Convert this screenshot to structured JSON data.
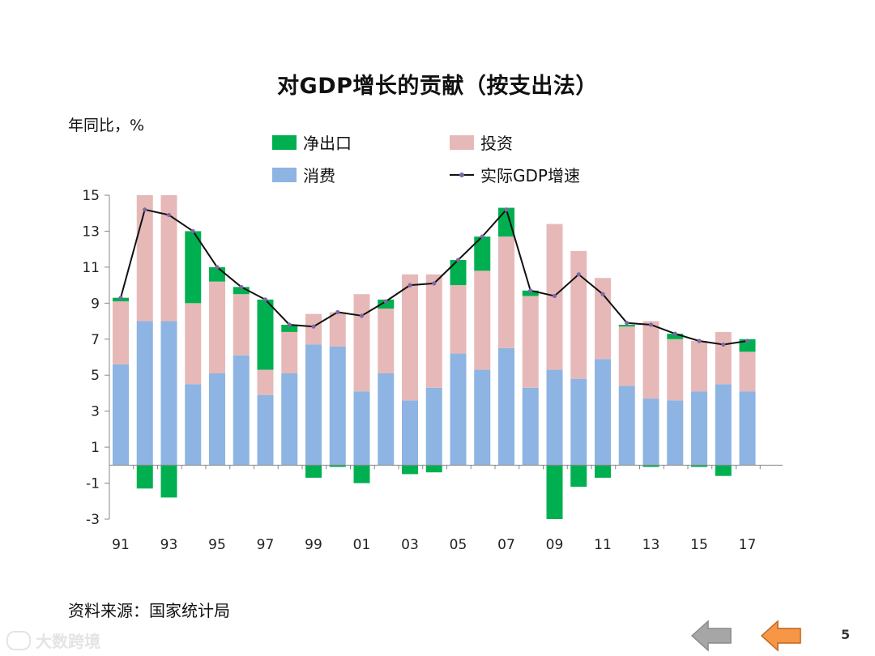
{
  "title": "对GDP增长的贡献（按支出法）",
  "unit_label": "年同比，%",
  "legend": {
    "net_exports": "净出口",
    "investment": "投资",
    "consumption": "消费",
    "gdp_growth": "实际GDP增速"
  },
  "source_note": "资料来源：国家统计局",
  "watermark_text": "大数跨境",
  "page_number": "5",
  "colors": {
    "consumption": "#8db4e2",
    "investment": "#e6b9b8",
    "net_exports": "#00b050",
    "gdp_line": "#111111",
    "gdp_marker": "#7b68a6",
    "nav_back": "#a6a6a6",
    "nav_forward": "#f79646"
  },
  "chart_data": {
    "type": "bar",
    "stacked": true,
    "years": [
      "1991",
      "1992",
      "1993",
      "1994",
      "1995",
      "1996",
      "1997",
      "1998",
      "1999",
      "2000",
      "2001",
      "2002",
      "2003",
      "2004",
      "2005",
      "2006",
      "2007",
      "2008",
      "2009",
      "2010",
      "2011",
      "2012",
      "2013",
      "2014",
      "2015",
      "2016",
      "2017"
    ],
    "x_tick_labels": [
      "91",
      "93",
      "95",
      "97",
      "99",
      "01",
      "03",
      "05",
      "07",
      "09",
      "11",
      "13",
      "15",
      "17"
    ],
    "y_ticks": [
      15,
      13,
      11,
      9,
      7,
      5,
      3,
      1,
      -1,
      -3
    ],
    "ylim": [
      -3,
      15
    ],
    "series": [
      {
        "name": "消费",
        "key": "consumption",
        "values": [
          5.6,
          8.0,
          8.0,
          4.5,
          5.1,
          6.1,
          3.9,
          5.1,
          6.7,
          6.6,
          4.1,
          5.1,
          3.6,
          4.3,
          6.2,
          5.3,
          6.5,
          4.3,
          5.3,
          4.8,
          5.9,
          4.4,
          3.7,
          3.6,
          4.1,
          4.5,
          4.1
        ]
      },
      {
        "name": "投资",
        "key": "investment",
        "values": [
          3.5,
          7.0,
          7.0,
          4.5,
          5.1,
          3.4,
          1.4,
          2.3,
          1.7,
          1.9,
          5.4,
          3.6,
          7.0,
          6.3,
          3.8,
          5.5,
          6.2,
          5.1,
          8.1,
          7.1,
          4.5,
          3.3,
          4.3,
          3.4,
          2.8,
          2.9,
          2.2
        ]
      },
      {
        "name": "净出口",
        "key": "net_exports",
        "values": [
          0.2,
          -1.3,
          -1.8,
          4.0,
          0.8,
          0.4,
          3.9,
          0.4,
          -0.7,
          -0.1,
          -1.0,
          0.5,
          -0.5,
          -0.4,
          1.4,
          1.9,
          1.6,
          0.3,
          -3.0,
          -1.2,
          -0.7,
          0.1,
          -0.1,
          0.3,
          -0.1,
          -0.6,
          0.7
        ]
      }
    ],
    "line": {
      "name": "实际GDP增速",
      "values": [
        9.3,
        14.2,
        13.9,
        13.0,
        11.0,
        9.9,
        9.2,
        7.8,
        7.7,
        8.5,
        8.3,
        9.1,
        10.0,
        10.1,
        11.4,
        12.7,
        14.2,
        9.7,
        9.4,
        10.6,
        9.5,
        7.9,
        7.8,
        7.3,
        6.9,
        6.7,
        6.9
      ]
    }
  }
}
